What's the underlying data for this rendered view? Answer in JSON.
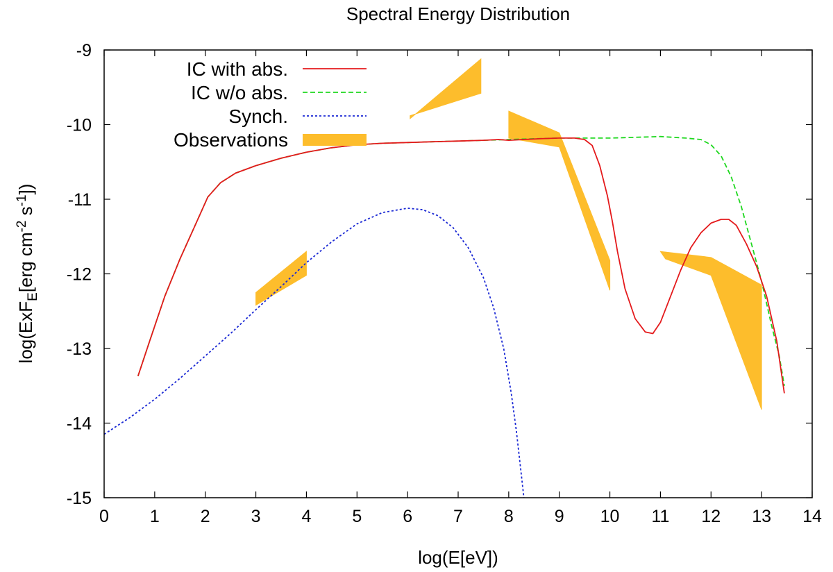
{
  "chart_data": {
    "type": "line",
    "title": "Spectral Energy Distribution",
    "xlabel": "log(E[eV])",
    "ylabel": {
      "parts": [
        "log(ExF",
        "E",
        "[erg cm",
        "-2",
        " s",
        "-1",
        "])"
      ]
    },
    "xlim": [
      0,
      14
    ],
    "ylim": [
      -15,
      -9
    ],
    "xticks": [
      0,
      1,
      2,
      3,
      4,
      5,
      6,
      7,
      8,
      9,
      10,
      11,
      12,
      13,
      14
    ],
    "yticks": [
      -9,
      -10,
      -11,
      -12,
      -13,
      -14,
      -15
    ],
    "grid": false,
    "legend_position": "top-left",
    "series": [
      {
        "name": "IC with abs.",
        "color": "#e41a1c",
        "style": "solid",
        "x": [
          0.67,
          0.9,
          1.2,
          1.5,
          1.8,
          2.05,
          2.3,
          2.6,
          3.0,
          3.5,
          4.0,
          4.5,
          5.0,
          5.5,
          6.0,
          6.5,
          7.0,
          7.5,
          7.8,
          8.0,
          8.3,
          8.6,
          9.0,
          9.3,
          9.5,
          9.65,
          9.8,
          9.95,
          10.05,
          10.15,
          10.3,
          10.5,
          10.7,
          10.85,
          11.0,
          11.2,
          11.4,
          11.6,
          11.8,
          12.0,
          12.2,
          12.35,
          12.5,
          12.7,
          12.9,
          13.1,
          13.3,
          13.45
        ],
        "y": [
          -13.37,
          -12.9,
          -12.3,
          -11.8,
          -11.35,
          -10.97,
          -10.78,
          -10.65,
          -10.55,
          -10.45,
          -10.37,
          -10.31,
          -10.27,
          -10.25,
          -10.24,
          -10.23,
          -10.22,
          -10.21,
          -10.2,
          -10.21,
          -10.2,
          -10.19,
          -10.18,
          -10.18,
          -10.2,
          -10.28,
          -10.55,
          -10.95,
          -11.3,
          -11.7,
          -12.2,
          -12.6,
          -12.78,
          -12.8,
          -12.65,
          -12.3,
          -11.95,
          -11.65,
          -11.45,
          -11.32,
          -11.27,
          -11.27,
          -11.35,
          -11.6,
          -11.9,
          -12.3,
          -12.9,
          -13.6
        ]
      },
      {
        "name": "IC w/o abs.",
        "color": "#1fd81f",
        "style": "dashed",
        "x": [
          0.67,
          0.9,
          1.2,
          1.5,
          1.8,
          2.05,
          2.3,
          2.6,
          3.0,
          3.5,
          4.0,
          4.5,
          5.0,
          5.5,
          6.0,
          6.5,
          7.0,
          7.5,
          8.0,
          8.5,
          9.0,
          9.5,
          10.0,
          10.5,
          11.0,
          11.5,
          11.8,
          12.0,
          12.2,
          12.4,
          12.6,
          12.8,
          13.0,
          13.2,
          13.35,
          13.45
        ],
        "y": [
          -13.37,
          -12.9,
          -12.3,
          -11.8,
          -11.35,
          -10.97,
          -10.78,
          -10.65,
          -10.55,
          -10.45,
          -10.37,
          -10.31,
          -10.27,
          -10.25,
          -10.24,
          -10.23,
          -10.22,
          -10.21,
          -10.2,
          -10.19,
          -10.18,
          -10.18,
          -10.18,
          -10.17,
          -10.16,
          -10.18,
          -10.2,
          -10.27,
          -10.42,
          -10.7,
          -11.1,
          -11.6,
          -12.1,
          -12.7,
          -13.1,
          -13.5
        ]
      },
      {
        "name": "Synch.",
        "color": "#1a28d4",
        "style": "dotted",
        "x": [
          0.0,
          0.5,
          1.0,
          1.5,
          2.0,
          2.5,
          3.0,
          3.5,
          4.0,
          4.5,
          5.0,
          5.5,
          6.0,
          6.3,
          6.6,
          6.9,
          7.2,
          7.5,
          7.7,
          7.9,
          8.05,
          8.15,
          8.25,
          8.3
        ],
        "y": [
          -14.15,
          -13.93,
          -13.68,
          -13.4,
          -13.1,
          -12.8,
          -12.48,
          -12.17,
          -11.85,
          -11.57,
          -11.33,
          -11.18,
          -11.12,
          -11.14,
          -11.22,
          -11.38,
          -11.65,
          -12.05,
          -12.45,
          -13.0,
          -13.6,
          -14.1,
          -14.7,
          -15.0
        ]
      }
    ],
    "observations": {
      "name": "Observations",
      "color": "#fdbd2c",
      "polygons": [
        [
          [
            3.0,
            -12.25
          ],
          [
            4.0,
            -11.7
          ],
          [
            4.0,
            -12.02
          ],
          [
            3.0,
            -12.42
          ]
        ],
        [
          [
            6.05,
            -9.92
          ],
          [
            7.45,
            -9.12
          ],
          [
            7.45,
            -9.58
          ],
          [
            6.05,
            -9.88
          ]
        ],
        [
          [
            8.0,
            -9.82
          ],
          [
            9.0,
            -10.11
          ],
          [
            9.0,
            -10.3
          ],
          [
            8.0,
            -10.18
          ]
        ],
        [
          [
            9.0,
            -10.11
          ],
          [
            10.0,
            -11.82
          ],
          [
            10.0,
            -12.22
          ],
          [
            9.0,
            -10.3
          ]
        ],
        [
          [
            11.0,
            -11.7
          ],
          [
            12.0,
            -11.78
          ],
          [
            13.0,
            -12.15
          ],
          [
            13.0,
            -13.82
          ],
          [
            12.0,
            -12.02
          ],
          [
            11.1,
            -11.8
          ]
        ]
      ]
    }
  }
}
